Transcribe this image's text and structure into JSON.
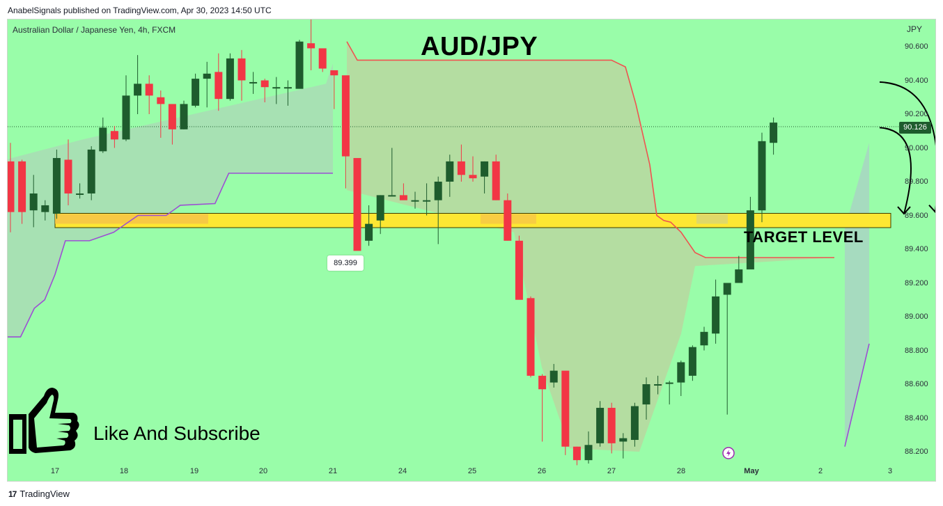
{
  "publisher_line": "AnabelSignals published on TradingView.com, Apr 30, 2023 14:50 UTC",
  "symbol_line": "Australian Dollar / Japanese Yen, 4h, FXCM",
  "currency": "JPY",
  "annotations": {
    "title": "AUD/JPY",
    "target_label": "TARGET LEVEL",
    "cta": "Like And Subscribe",
    "low_marker": "89.399",
    "last_price": "90.126"
  },
  "brand": "TradingView",
  "colors": {
    "background": "#99fda9",
    "up_candle": "#1e5c2d",
    "down_candle": "#f23645",
    "target_band": "#fde733",
    "upper_line": "#ef5350",
    "lower_line": "#9c4fd3",
    "cloud_fill": "#a8d9a8"
  },
  "icons": [
    "thumbs-up-icon",
    "lightning-icon",
    "curved-arrow-icon"
  ],
  "chart_data": {
    "type": "candlestick",
    "timeframe": "4h",
    "y_axis": {
      "ticks": [
        "90.600",
        "90.400",
        "90.200",
        "90.000",
        "89.800",
        "89.600",
        "89.400",
        "89.200",
        "89.000",
        "88.800",
        "88.600",
        "88.400",
        "88.200"
      ],
      "range": [
        88.13,
        90.8
      ]
    },
    "x_axis": {
      "ticks": [
        "17",
        "18",
        "19",
        "20",
        "21",
        "24",
        "25",
        "26",
        "27",
        "28",
        "May",
        "2",
        "3"
      ]
    },
    "target_band": [
      89.54,
      89.6
    ],
    "last_price": 90.126,
    "candles": [
      [
        89.92,
        89.62,
        90.03,
        89.5
      ],
      [
        89.92,
        89.62,
        89.93,
        89.55
      ],
      [
        89.63,
        89.73,
        89.84,
        89.53
      ],
      [
        89.62,
        89.66,
        89.69,
        89.57
      ],
      [
        89.61,
        89.94,
        89.99,
        89.58
      ],
      [
        89.93,
        89.73,
        90.05,
        89.66
      ],
      [
        89.73,
        89.73,
        89.79,
        89.7
      ],
      [
        89.73,
        89.99,
        90.01,
        89.69
      ],
      [
        89.98,
        90.12,
        90.18,
        89.97
      ],
      [
        90.1,
        90.05,
        90.13,
        90.0
      ],
      [
        90.05,
        90.31,
        90.43,
        90.04
      ],
      [
        90.31,
        90.38,
        90.55,
        90.2
      ],
      [
        90.38,
        90.31,
        90.43,
        90.2
      ],
      [
        90.3,
        90.26,
        90.34,
        90.06
      ],
      [
        90.26,
        90.11,
        90.16,
        90.02
      ],
      [
        90.11,
        90.26,
        90.28,
        90.11
      ],
      [
        90.25,
        90.41,
        90.44,
        90.24
      ],
      [
        90.41,
        90.44,
        90.51,
        90.24
      ],
      [
        90.45,
        90.29,
        90.56,
        90.22
      ],
      [
        90.29,
        90.53,
        90.56,
        90.28
      ],
      [
        90.53,
        90.4,
        90.58,
        90.28
      ],
      [
        90.39,
        90.39,
        90.45,
        90.32
      ],
      [
        90.4,
        90.36,
        90.41,
        90.27
      ],
      [
        90.36,
        90.36,
        90.42,
        90.26
      ],
      [
        90.36,
        90.36,
        90.4,
        90.25
      ],
      [
        90.35,
        90.63,
        90.64,
        90.37
      ],
      [
        90.62,
        90.59,
        90.77,
        90.46
      ],
      [
        90.59,
        90.47,
        90.56,
        90.45
      ],
      [
        90.46,
        90.43,
        90.46,
        90.23
      ],
      [
        90.43,
        89.95,
        90.26,
        89.76
      ],
      [
        89.94,
        89.39,
        89.9,
        89.44
      ],
      [
        89.45,
        89.55,
        89.66,
        89.42
      ],
      [
        89.57,
        89.72,
        89.72,
        89.49
      ],
      [
        89.72,
        89.72,
        90.0,
        89.72
      ],
      [
        89.72,
        89.69,
        89.79,
        89.7
      ],
      [
        89.69,
        89.69,
        89.74,
        89.64
      ],
      [
        89.69,
        89.69,
        89.79,
        89.6
      ],
      [
        89.69,
        89.8,
        89.83,
        89.43
      ],
      [
        89.8,
        89.92,
        89.96,
        89.71
      ],
      [
        89.92,
        89.84,
        90.02,
        89.8
      ],
      [
        89.84,
        89.82,
        89.95,
        89.8
      ],
      [
        89.83,
        89.92,
        89.92,
        89.73
      ],
      [
        89.92,
        89.69,
        89.96,
        89.69
      ],
      [
        89.69,
        89.45,
        89.73,
        89.45
      ],
      [
        89.45,
        89.1,
        89.48,
        89.2
      ],
      [
        89.11,
        88.65,
        89.12,
        88.64
      ],
      [
        88.65,
        88.57,
        88.66,
        88.26
      ],
      [
        88.61,
        88.68,
        88.72,
        88.58
      ],
      [
        88.68,
        88.23,
        88.65,
        88.18
      ],
      [
        88.23,
        88.15,
        88.23,
        88.12
      ],
      [
        88.15,
        88.24,
        88.32,
        88.13
      ],
      [
        88.25,
        88.46,
        88.5,
        88.23
      ],
      [
        88.46,
        88.25,
        88.49,
        88.19
      ],
      [
        88.26,
        88.28,
        88.31,
        88.16
      ],
      [
        88.27,
        88.47,
        88.49,
        88.23
      ],
      [
        88.48,
        88.6,
        88.64,
        88.39
      ],
      [
        88.6,
        88.6,
        88.65,
        88.54
      ],
      [
        88.61,
        88.61,
        88.62,
        88.48
      ],
      [
        88.61,
        88.73,
        88.74,
        88.53
      ],
      [
        88.65,
        88.82,
        88.83,
        88.62
      ],
      [
        88.83,
        88.91,
        88.94,
        88.8
      ],
      [
        88.9,
        89.12,
        89.22,
        88.84
      ],
      [
        89.13,
        89.2,
        89.2,
        88.42
      ],
      [
        89.2,
        89.28,
        89.36,
        89.2
      ],
      [
        89.28,
        89.63,
        89.71,
        89.3
      ],
      [
        89.63,
        90.04,
        90.09,
        89.56
      ],
      [
        90.03,
        90.15,
        90.18,
        89.96
      ]
    ],
    "cloud_upper": [
      [
        21.2,
        90.63
      ],
      [
        21.35,
        90.52
      ],
      [
        22.0,
        90.52
      ],
      [
        23.0,
        90.52
      ],
      [
        25.0,
        90.52
      ],
      [
        25.2,
        90.48
      ],
      [
        25.35,
        90.26
      ],
      [
        25.55,
        89.9
      ],
      [
        25.65,
        89.6
      ],
      [
        25.75,
        89.57
      ],
      [
        25.85,
        89.56
      ],
      [
        26.0,
        89.5
      ],
      [
        26.2,
        89.38
      ],
      [
        26.35,
        89.35
      ],
      [
        27.0,
        89.35
      ],
      [
        28.2,
        89.35
      ]
    ],
    "cloud_lower": [
      [
        16.0,
        88.88
      ],
      [
        16.5,
        88.88
      ],
      [
        16.7,
        89.05
      ],
      [
        16.85,
        89.1
      ],
      [
        17.0,
        89.25
      ],
      [
        17.15,
        89.45
      ],
      [
        17.5,
        89.45
      ],
      [
        17.85,
        89.5
      ],
      [
        18.2,
        89.6
      ],
      [
        18.6,
        89.6
      ],
      [
        18.8,
        89.66
      ],
      [
        19.3,
        89.67
      ],
      [
        19.5,
        89.85
      ],
      [
        21.0,
        89.85
      ]
    ],
    "projection_line": [
      [
        28.35,
        88.23
      ],
      [
        28.7,
        88.84
      ]
    ],
    "projection_arrows": [
      {
        "from": [
          28.85,
          90.12
        ],
        "to": [
          29.2,
          89.61
        ]
      },
      {
        "from": [
          28.85,
          90.39
        ],
        "to": [
          29.65,
          89.62
        ]
      }
    ]
  }
}
